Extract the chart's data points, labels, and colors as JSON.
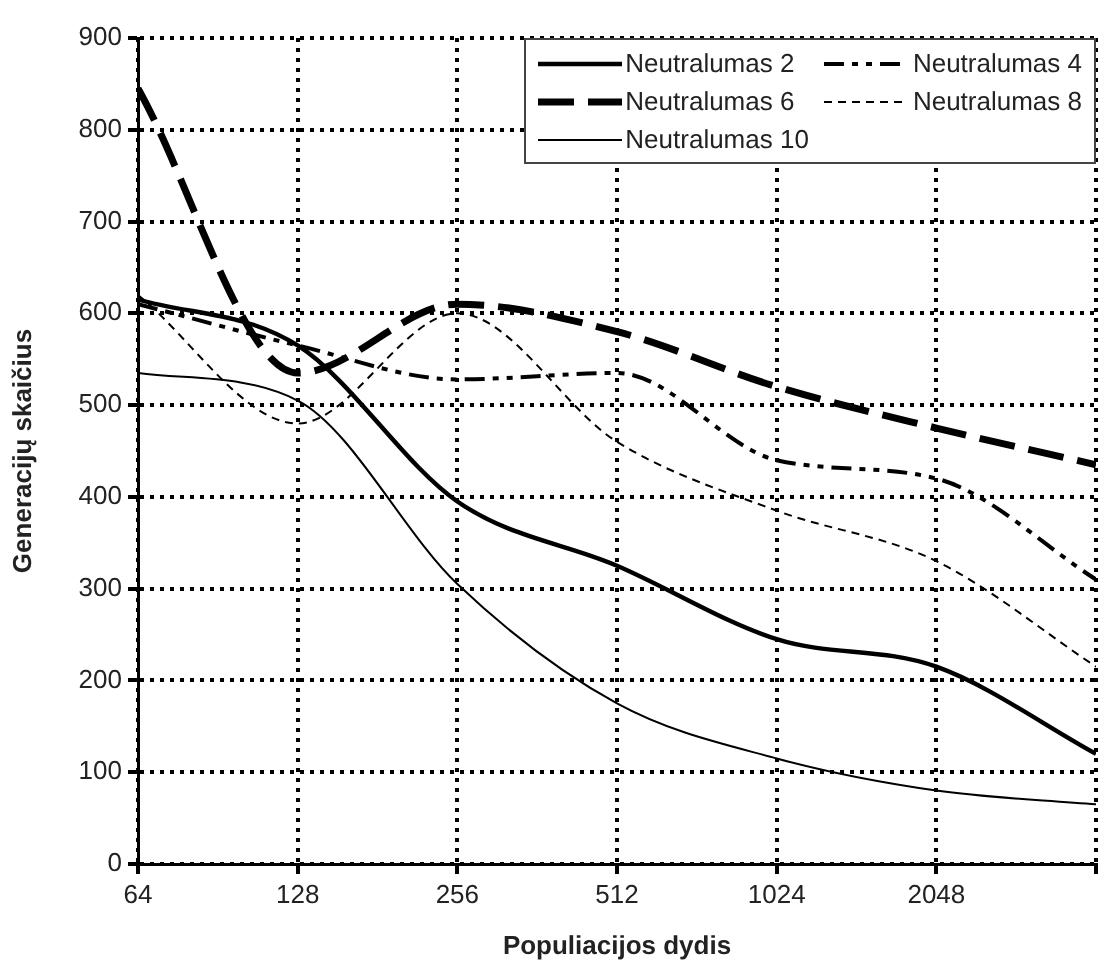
{
  "chart_data": {
    "type": "line",
    "xlabel": "Populiacijos dydis",
    "ylabel": "Generacijų skaičius",
    "x": [
      64,
      128,
      256,
      512,
      1024,
      2048,
      4096
    ],
    "log": "x",
    "xlim": [
      64,
      4096
    ],
    "xticks": [
      64,
      128,
      256,
      512,
      1024,
      2048,
      {
        "value": 4096,
        "label": null
      }
    ],
    "ylim": [
      0,
      900
    ],
    "yticks": [
      0,
      100,
      200,
      300,
      400,
      500,
      600,
      700,
      800,
      900
    ],
    "grid": true,
    "legend": "top right",
    "marker": "none",
    "series": [
      {
        "name": "Neutralumas 2",
        "color": "#000000",
        "line_style": "solid",
        "values": [
          615,
          565,
          395,
          325,
          245,
          215,
          120
        ]
      },
      {
        "name": "Neutralumas 4",
        "color": "#000000",
        "line_style": "dashed",
        "values": [
          610,
          565,
          528,
          535,
          440,
          420,
          310
        ]
      },
      {
        "name": "Neutralumas 6",
        "color": "#000000",
        "line_style": "dashed",
        "values": [
          845,
          535,
          610,
          580,
          520,
          475,
          435
        ]
      },
      {
        "name": "Neutralumas 8",
        "color": "#000000",
        "line_style": "dashed",
        "values": [
          620,
          480,
          600,
          460,
          385,
          330,
          215
        ]
      },
      {
        "name": "Neutralumas 10",
        "color": "#000000",
        "line_style": "solid",
        "values": [
          535,
          505,
          305,
          175,
          115,
          80,
          65
        ]
      }
    ]
  }
}
